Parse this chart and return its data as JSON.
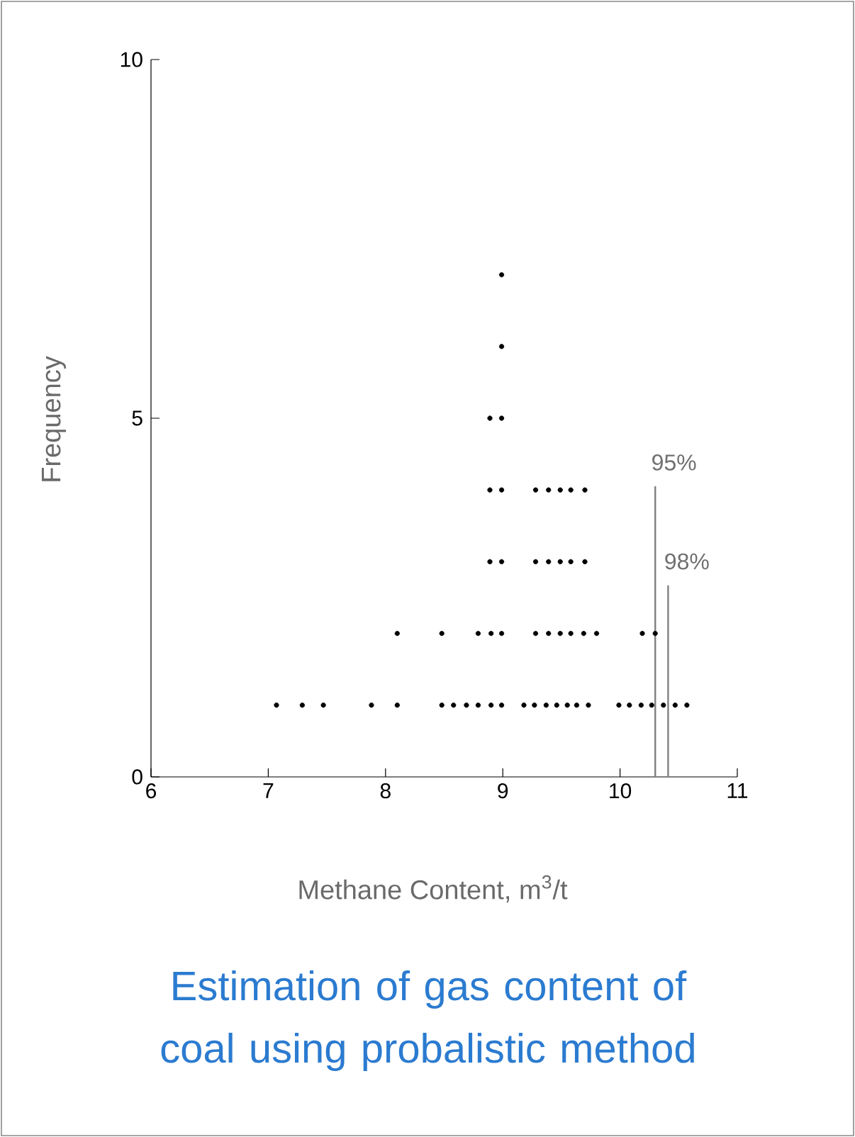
{
  "chart_data": {
    "type": "scatter",
    "title": "Estimation of gas content of coal using probalistic method",
    "xlabel": "Methane Content, m$^{3}$/t",
    "ylabel": "Frequency",
    "xlim": [
      6,
      11
    ],
    "xticks": [
      6,
      7,
      8,
      9,
      10,
      11
    ],
    "ylim": [
      0,
      10
    ],
    "yticks": [
      0,
      5,
      10
    ],
    "grid": false,
    "series": [
      {
        "color": "#000000",
        "x": [
          7.07,
          7.29,
          7.47,
          7.88,
          8.1,
          8.48,
          8.58,
          8.69,
          8.79,
          8.9,
          8.99,
          9.18,
          9.27,
          9.37,
          9.46,
          9.55,
          9.63,
          9.73,
          9.99,
          10.08,
          10.18,
          10.27,
          10.37,
          10.47,
          10.57,
          8.1,
          8.48,
          8.79,
          8.9,
          8.99,
          9.28,
          9.39,
          9.49,
          9.58,
          9.69,
          9.8,
          10.19,
          10.3,
          8.89,
          8.99,
          9.28,
          9.39,
          9.49,
          9.58,
          9.7,
          8.89,
          8.99,
          9.28,
          9.39,
          9.49,
          9.58,
          9.7,
          8.89,
          8.99,
          8.99,
          8.99
        ],
        "values": [
          1,
          1,
          1,
          1,
          1,
          1,
          1,
          1,
          1,
          1,
          1,
          1,
          1,
          1,
          1,
          1,
          1,
          1,
          1,
          1,
          1,
          1,
          1,
          1,
          1,
          2,
          2,
          2,
          2,
          2,
          2,
          2,
          2,
          2,
          2,
          2,
          2,
          2,
          3,
          3,
          3,
          3,
          3,
          3,
          3,
          4,
          4,
          4,
          4,
          4,
          4,
          4,
          5,
          5,
          6,
          7
        ]
      },
      {
        "type": "line",
        "color": "#808080",
        "x": [
          10.3,
          10.3
        ],
        "values": [
          0,
          4.05
        ]
      },
      {
        "type": "line",
        "color": "#808080",
        "x": [
          10.41,
          10.41
        ],
        "values": [
          0,
          2.67
        ]
      }
    ],
    "annotations": [
      {
        "text": "95%",
        "x": 10.3,
        "y": 4.05
      },
      {
        "text": "98%",
        "x": 10.41,
        "y": 2.67
      }
    ]
  }
}
